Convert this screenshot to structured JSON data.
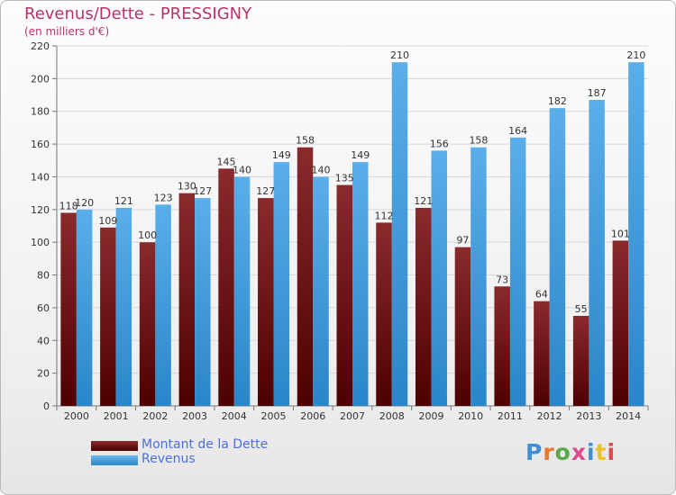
{
  "title": "Revenus/Dette - PRESSIGNY",
  "subtitle": "(en milliers d'€)",
  "colors": {
    "title": "#b8326b",
    "dette": "#7a1a1d",
    "revenus": "#4fa6e6",
    "legend_text": "#4d6fdc"
  },
  "legend": {
    "dette": "Montant de la Dette",
    "revenus": "Revenus"
  },
  "logo": {
    "text": "Proxiti"
  },
  "chart_data": {
    "type": "bar",
    "categories": [
      "2000",
      "2001",
      "2002",
      "2003",
      "2004",
      "2005",
      "2006",
      "2007",
      "2008",
      "2009",
      "2010",
      "2011",
      "2012",
      "2013",
      "2014"
    ],
    "series": [
      {
        "name": "Montant de la Dette",
        "values": [
          118,
          109,
          100,
          130,
          145,
          127,
          158,
          135,
          112,
          121,
          97,
          73,
          64,
          55,
          101
        ]
      },
      {
        "name": "Revenus",
        "values": [
          120,
          121,
          123,
          127,
          140,
          149,
          140,
          149,
          210,
          156,
          158,
          164,
          182,
          187,
          210
        ]
      }
    ],
    "ylim": [
      0,
      220
    ],
    "yticks": [
      0,
      20,
      40,
      60,
      80,
      100,
      120,
      140,
      160,
      180,
      200,
      220
    ],
    "grid": true,
    "legend_position": "bottom-left"
  }
}
